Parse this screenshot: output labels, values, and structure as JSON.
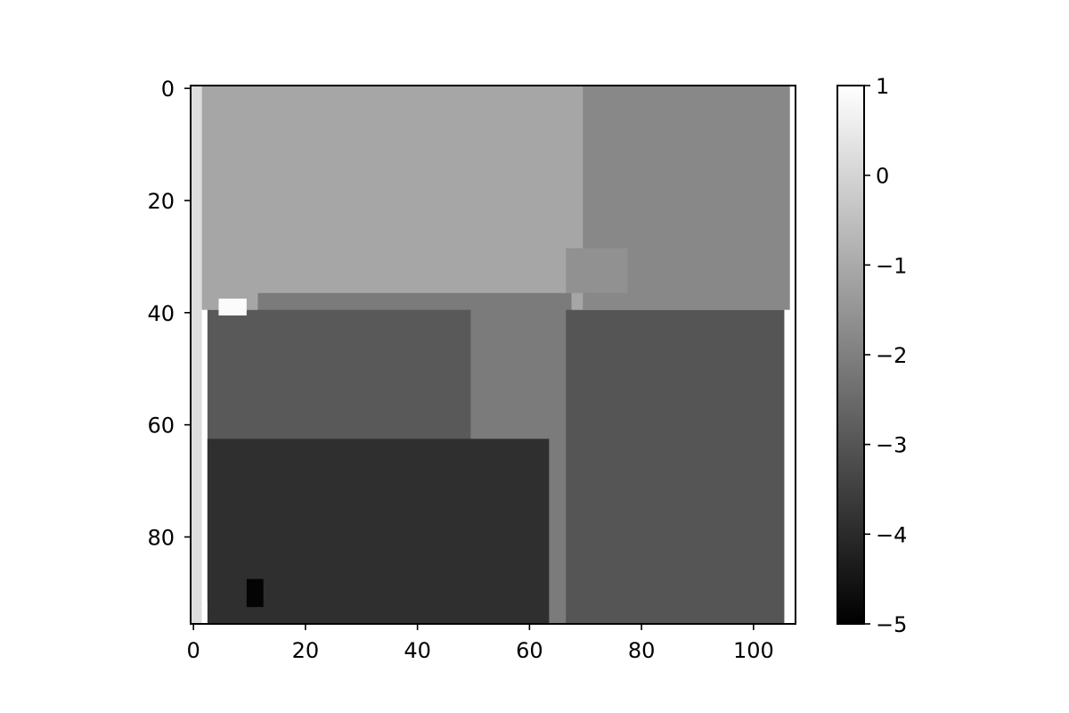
{
  "chart_data": {
    "type": "heatmap",
    "title": "",
    "xlabel": "",
    "ylabel": "",
    "colormap": "gray",
    "grid": false,
    "image_shape": [
      96,
      108
    ],
    "xlim": [
      -0.5,
      107.5
    ],
    "ylim": [
      95.5,
      -0.5
    ],
    "value_range": [
      -5,
      1
    ],
    "x_ticks": [
      0,
      20,
      40,
      60,
      80,
      100
    ],
    "y_ticks": [
      0,
      20,
      40,
      60,
      80
    ],
    "x_tick_labels": [
      "0",
      "20",
      "40",
      "60",
      "80",
      "100"
    ],
    "y_tick_labels": [
      "0",
      "20",
      "40",
      "60",
      "80"
    ],
    "colorbar": {
      "ticks": [
        1,
        0,
        -1,
        -2,
        -3,
        -4,
        -5
      ],
      "tick_labels": [
        "1",
        "0",
        "−1",
        "−2",
        "−3",
        "−4",
        "−5"
      ]
    },
    "regions": [
      {
        "level": -1.1,
        "description": "upper-left / upper-center plateau",
        "rows": [
          0,
          40
        ],
        "cols": [
          2,
          70
        ]
      },
      {
        "level": -1.8,
        "description": "upper-right region",
        "rows": [
          0,
          40
        ],
        "cols": [
          70,
          107
        ]
      },
      {
        "level": -1.6,
        "description": "light patch",
        "rows": [
          29,
          37
        ],
        "cols": [
          67,
          78
        ]
      },
      {
        "level": -2.1,
        "description": "central diagonal band",
        "rows": [
          37,
          96
        ],
        "cols": [
          12,
          68
        ]
      },
      {
        "level": -2.9,
        "description": "left-middle region",
        "rows": [
          40,
          92
        ],
        "cols": [
          3,
          50
        ]
      },
      {
        "level": -3.0,
        "description": "right lower block",
        "rows": [
          40,
          96
        ],
        "cols": [
          67,
          106
        ]
      },
      {
        "level": -3.9,
        "description": "bottom-left dark region",
        "rows": [
          63,
          96
        ],
        "cols": [
          3,
          64
        ]
      },
      {
        "level": -4.9,
        "description": "darkest spot",
        "rows": [
          88,
          93
        ],
        "cols": [
          10,
          13
        ]
      },
      {
        "level": 0.2,
        "description": "light left edge strip",
        "rows": [
          0,
          96
        ],
        "cols": [
          0,
          2
        ]
      },
      {
        "level": 0.9,
        "description": "bright spot",
        "rows": [
          38,
          41
        ],
        "cols": [
          5,
          10
        ]
      }
    ]
  }
}
